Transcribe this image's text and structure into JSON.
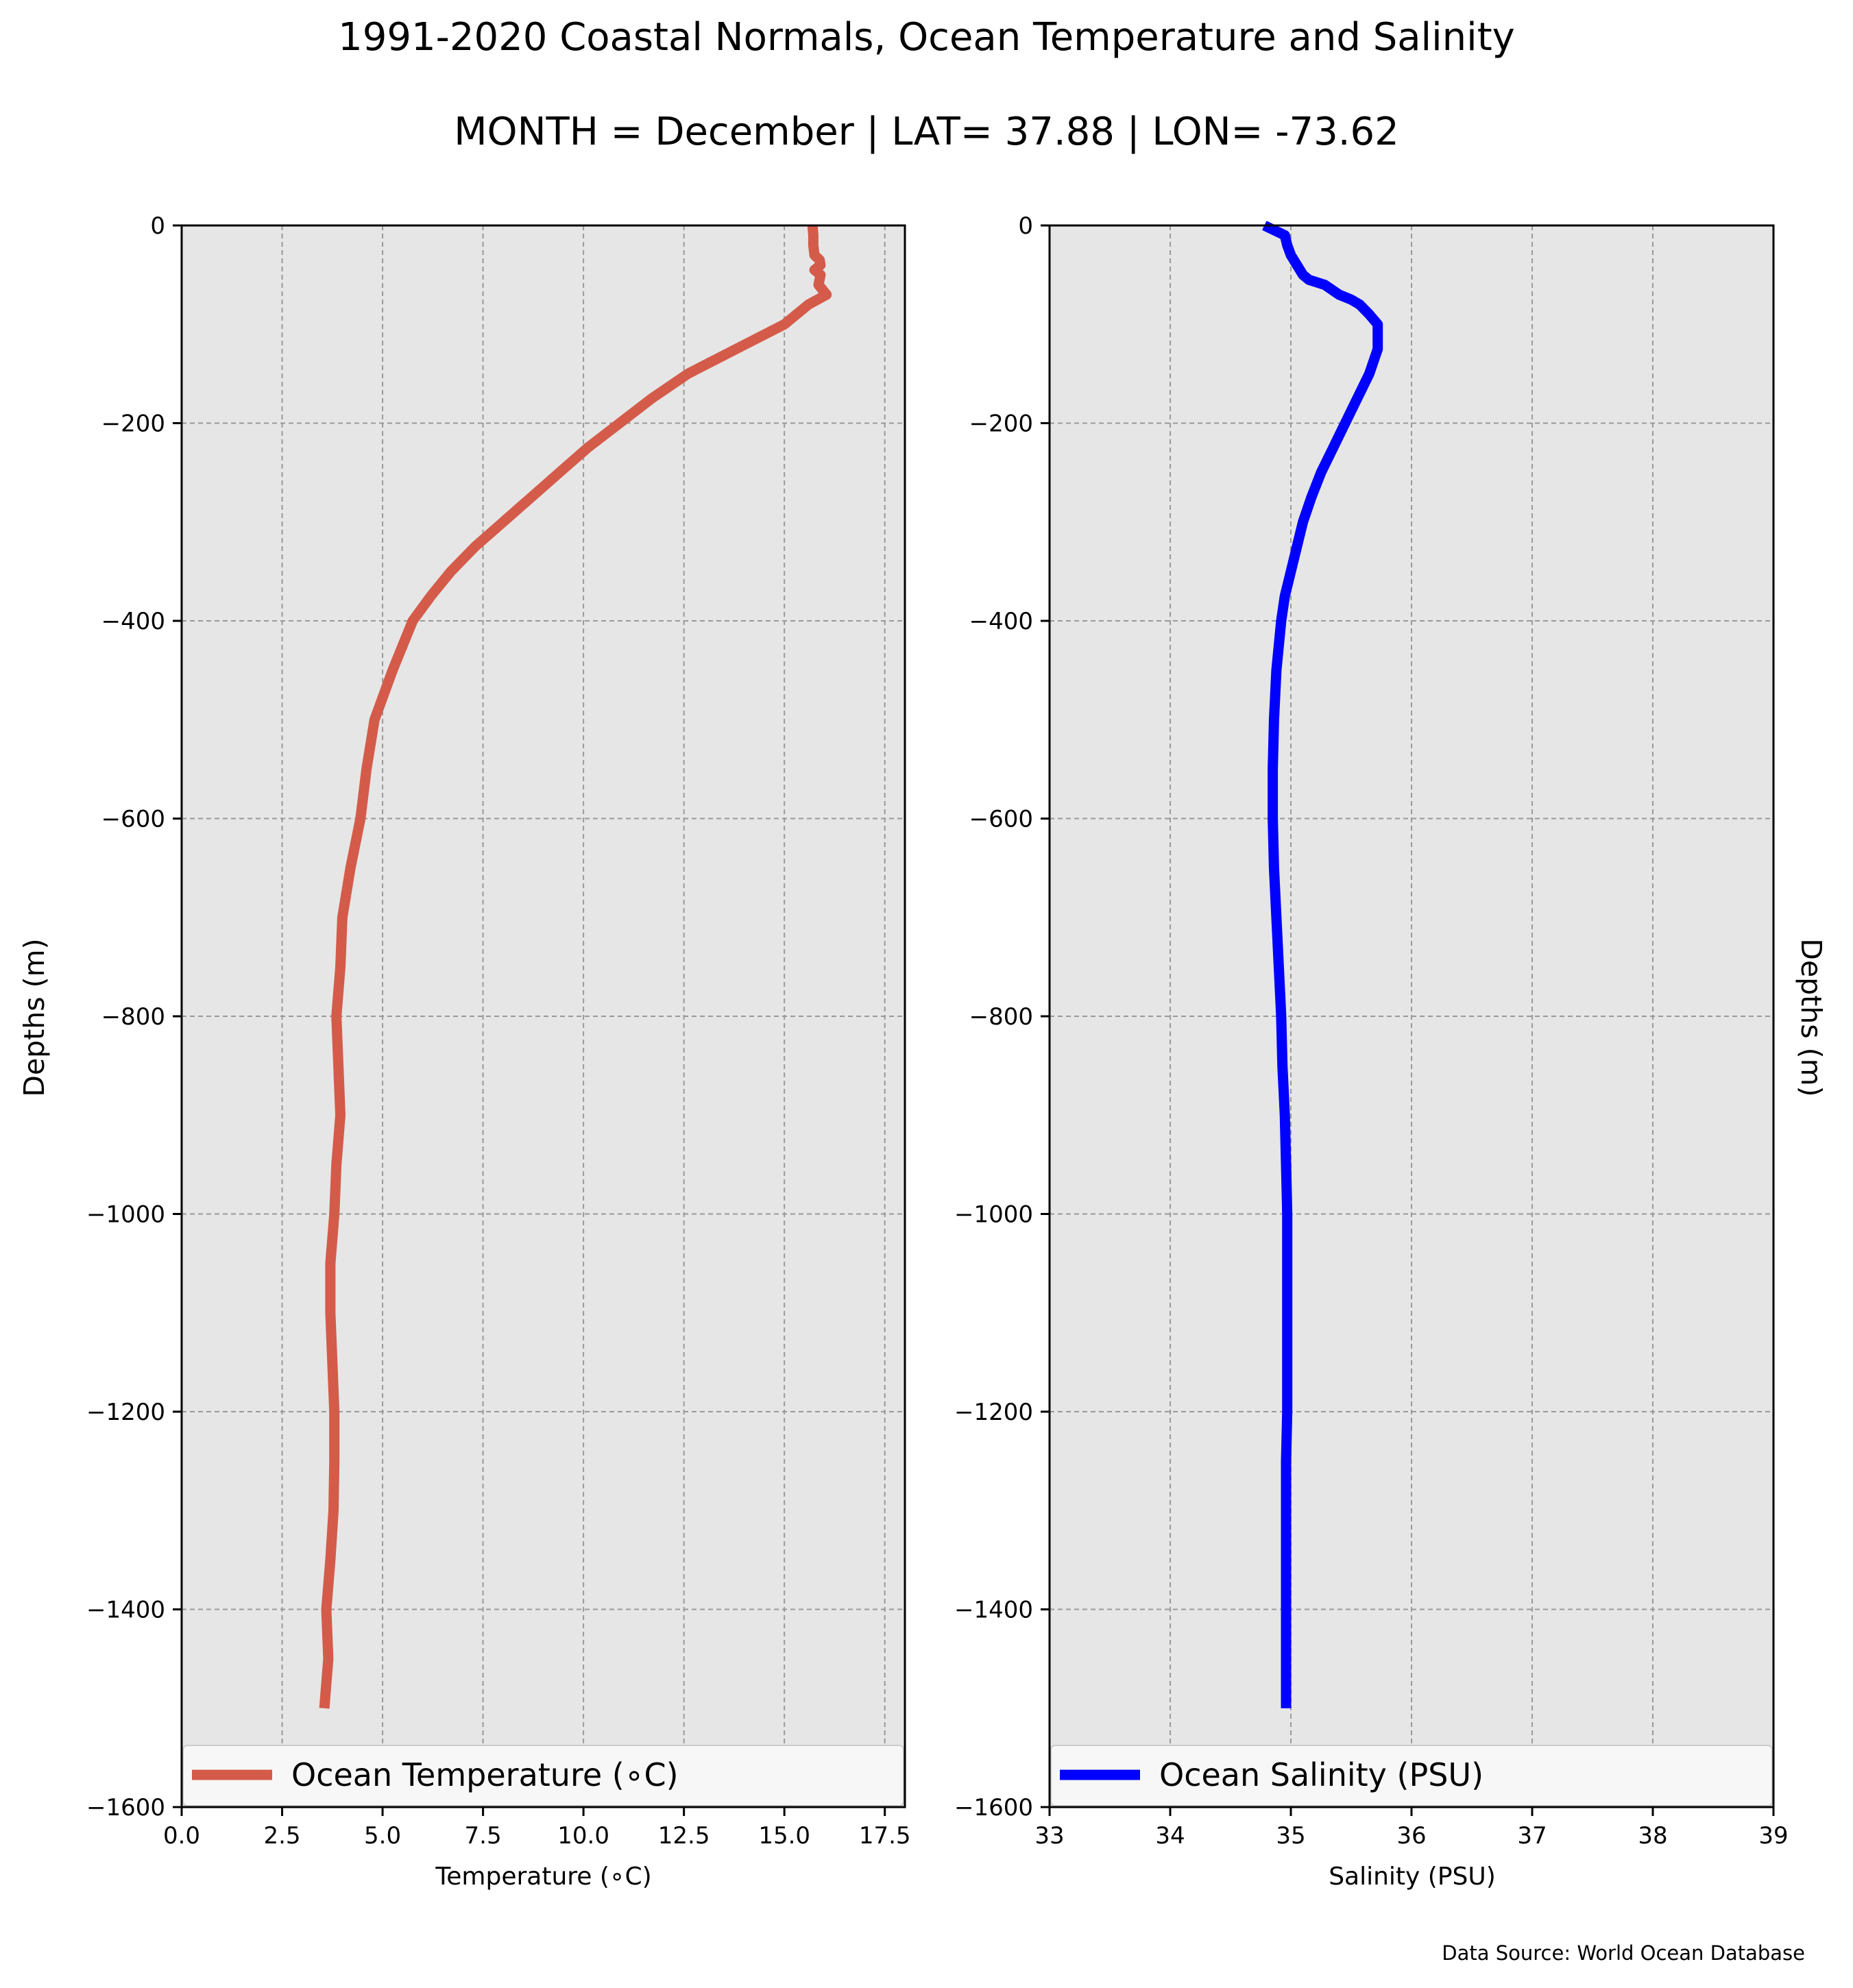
{
  "title": "1991-2020 Coastal Normals, Ocean Temperature and Salinity",
  "subtitle": "MONTH = December | LAT= 37.88 | LON= -73.62",
  "source_note": "Data Source: World Ocean Database",
  "colors": {
    "temperature": "#d45b4a",
    "salinity": "#0000ff",
    "plot_bg": "#e6e6e6",
    "grid": "#999999"
  },
  "chart_data": [
    {
      "type": "line",
      "panel": "left",
      "xlabel": "Temperature ($^\\circ$C)",
      "xlabel_text": "Temperature (∘C)",
      "ylabel": "Depths (m)",
      "xlim": [
        0,
        18
      ],
      "ylim": [
        -1600,
        0
      ],
      "xticks": [
        0,
        2.5,
        5,
        7.5,
        10,
        12.5,
        15,
        17.5
      ],
      "xtick_labels": [
        "0.0",
        "2.5",
        "5.0",
        "7.5",
        "10.0",
        "12.5",
        "15.0",
        "17.5"
      ],
      "yticks": [
        0,
        -200,
        -400,
        -600,
        -800,
        -1000,
        -1200,
        -1400,
        -1600
      ],
      "ytick_labels": [
        "0",
        "−200",
        "−400",
        "−600",
        "−800",
        "−1000",
        "−1200",
        "−1400",
        "−1600"
      ],
      "grid": true,
      "legend_position": "bottom",
      "series": [
        {
          "name": "Ocean Temperature ($^\\circ$C)",
          "label_text": "Ocean Temperature (∘C)",
          "x": [
            15.7,
            15.72,
            15.72,
            15.75,
            15.88,
            15.9,
            15.75,
            15.9,
            15.85,
            16.05,
            15.6,
            15.3,
            15.0,
            13.8,
            12.6,
            11.7,
            10.9,
            10.1,
            9.4,
            8.7,
            8.0,
            7.3,
            6.7,
            6.2,
            5.75,
            5.25,
            4.8,
            4.6,
            4.45,
            4.2,
            4.0,
            3.95,
            3.85,
            3.9,
            3.95,
            3.85,
            3.8,
            3.7,
            3.7,
            3.75,
            3.8,
            3.8,
            3.78,
            3.7,
            3.6,
            3.65,
            3.55
          ],
          "y": [
            0,
            -10,
            -20,
            -30,
            -35,
            -40,
            -45,
            -50,
            -60,
            -70,
            -80,
            -90,
            -100,
            -125,
            -150,
            -175,
            -200,
            -225,
            -250,
            -275,
            -300,
            -325,
            -350,
            -375,
            -400,
            -450,
            -500,
            -550,
            -600,
            -650,
            -700,
            -750,
            -800,
            -850,
            -900,
            -950,
            -1000,
            -1050,
            -1100,
            -1150,
            -1200,
            -1250,
            -1300,
            -1350,
            -1400,
            -1450,
            -1500
          ]
        }
      ]
    },
    {
      "type": "line",
      "panel": "right",
      "xlabel": "Salinity (PSU)",
      "ylabel": "Depths (m)",
      "xlim": [
        33,
        39
      ],
      "ylim": [
        -1600,
        0
      ],
      "xticks": [
        33,
        34,
        35,
        36,
        37,
        38,
        39
      ],
      "xtick_labels": [
        "33",
        "34",
        "35",
        "36",
        "37",
        "38",
        "39"
      ],
      "yticks": [
        0,
        -200,
        -400,
        -600,
        -800,
        -1000,
        -1200,
        -1400,
        -1600
      ],
      "ytick_labels": [
        "0",
        "−200",
        "−400",
        "−600",
        "−800",
        "−1000",
        "−1200",
        "−1400",
        "−1600"
      ],
      "grid": true,
      "legend_position": "bottom",
      "series": [
        {
          "name": "Ocean Salinity (PSU)",
          "x": [
            34.78,
            34.95,
            34.97,
            35.0,
            35.05,
            35.1,
            35.15,
            35.28,
            35.4,
            35.5,
            35.57,
            35.65,
            35.72,
            35.72,
            35.72,
            35.65,
            35.55,
            35.45,
            35.35,
            35.25,
            35.17,
            35.1,
            35.05,
            35.0,
            34.95,
            34.92,
            34.88,
            34.86,
            34.85,
            34.85,
            34.86,
            34.88,
            34.9,
            34.92,
            34.93,
            34.95,
            34.96,
            34.97,
            34.97,
            34.97,
            34.96,
            34.96,
            34.96,
            34.96,
            34.96,
            34.96
          ],
          "y": [
            0,
            -10,
            -20,
            -30,
            -40,
            -50,
            -55,
            -60,
            -70,
            -75,
            -80,
            -90,
            -100,
            -110,
            -125,
            -150,
            -175,
            -200,
            -225,
            -250,
            -275,
            -300,
            -325,
            -350,
            -375,
            -400,
            -450,
            -500,
            -550,
            -600,
            -650,
            -700,
            -750,
            -800,
            -850,
            -900,
            -950,
            -1000,
            -1100,
            -1200,
            -1250,
            -1300,
            -1350,
            -1400,
            -1450,
            -1500
          ]
        }
      ]
    }
  ]
}
